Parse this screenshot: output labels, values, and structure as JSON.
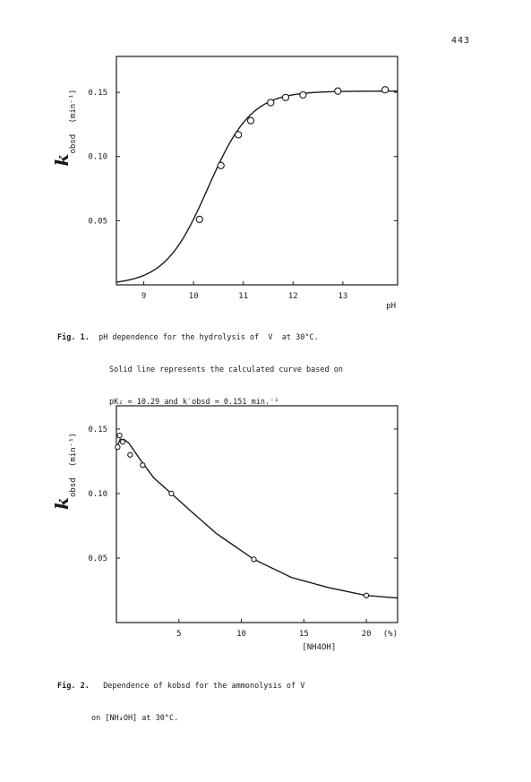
{
  "page_number": "443",
  "figure1": {
    "caption_label": "Fig. 1.",
    "caption_lines": [
      "pH dependence for the hydrolysis of  V  at 30°C.",
      "Solid line represents the calculated curve based on",
      "pK₂ = 10.29 and k′obsd = 0.151 min.⁻¹"
    ]
  },
  "figure2": {
    "caption_label": "Fig. 2.",
    "caption_lines": [
      "Dependence of kobsd for the ammonolysis of V",
      "on [NH₄OH] at 30°C."
    ]
  },
  "chart_data": [
    {
      "type": "scatter",
      "xlabel": "pH",
      "ylabel": "k obsd",
      "ylabel_unit": "(min⁻¹)",
      "xlim": [
        8.45,
        14.1
      ],
      "ylim": [
        0.0,
        0.178
      ],
      "x_ticks": [
        9,
        10,
        11,
        12,
        13
      ],
      "x_tick_labels": [
        "9",
        "10",
        "11",
        "12",
        "13"
      ],
      "y_ticks": [
        0.05,
        0.1,
        0.15
      ],
      "y_tick_labels": [
        "0.05",
        "0.10",
        "0.15"
      ],
      "grid": false,
      "series": [
        {
          "marker": "circle",
          "x": [
            10.12,
            10.55,
            10.9,
            11.15,
            11.55,
            11.85,
            12.2,
            12.9,
            13.85
          ],
          "y": [
            0.051,
            0.093,
            0.117,
            0.128,
            0.142,
            0.146,
            0.148,
            0.151,
            0.152
          ]
        }
      ],
      "fit_curve": {
        "model": "sigmoid",
        "pK": 10.29,
        "k_max": 0.151
      }
    },
    {
      "type": "scatter",
      "xlabel": "[NH4OH]",
      "xlabel_unit": "(%)",
      "ylabel": "k obsd",
      "ylabel_unit": "(min⁻¹)",
      "xlim": [
        0,
        22.5
      ],
      "ylim": [
        0.0,
        0.168
      ],
      "x_ticks": [
        5,
        10,
        15,
        20
      ],
      "x_tick_labels": [
        "5",
        "10",
        "15",
        "20"
      ],
      "y_ticks": [
        0.05,
        0.1,
        0.15
      ],
      "y_tick_labels": [
        "0.05",
        "0.10",
        "0.15"
      ],
      "grid": false,
      "series": [
        {
          "marker": "circle",
          "x": [
            0.1,
            0.25,
            0.5,
            1.1,
            2.1,
            4.4,
            11.0,
            20.0
          ],
          "y": [
            0.136,
            0.145,
            0.14,
            0.13,
            0.122,
            0.1,
            0.049,
            0.021
          ]
        }
      ],
      "fit_curve": {
        "x": [
          0.0,
          0.3,
          0.6,
          1.0,
          2.0,
          3.0,
          4.4,
          6.0,
          8.0,
          11.0,
          14.0,
          17.0,
          20.0,
          22.5
        ],
        "y": [
          0.135,
          0.142,
          0.142,
          0.139,
          0.125,
          0.112,
          0.1,
          0.086,
          0.069,
          0.049,
          0.035,
          0.027,
          0.021,
          0.019
        ]
      }
    }
  ]
}
